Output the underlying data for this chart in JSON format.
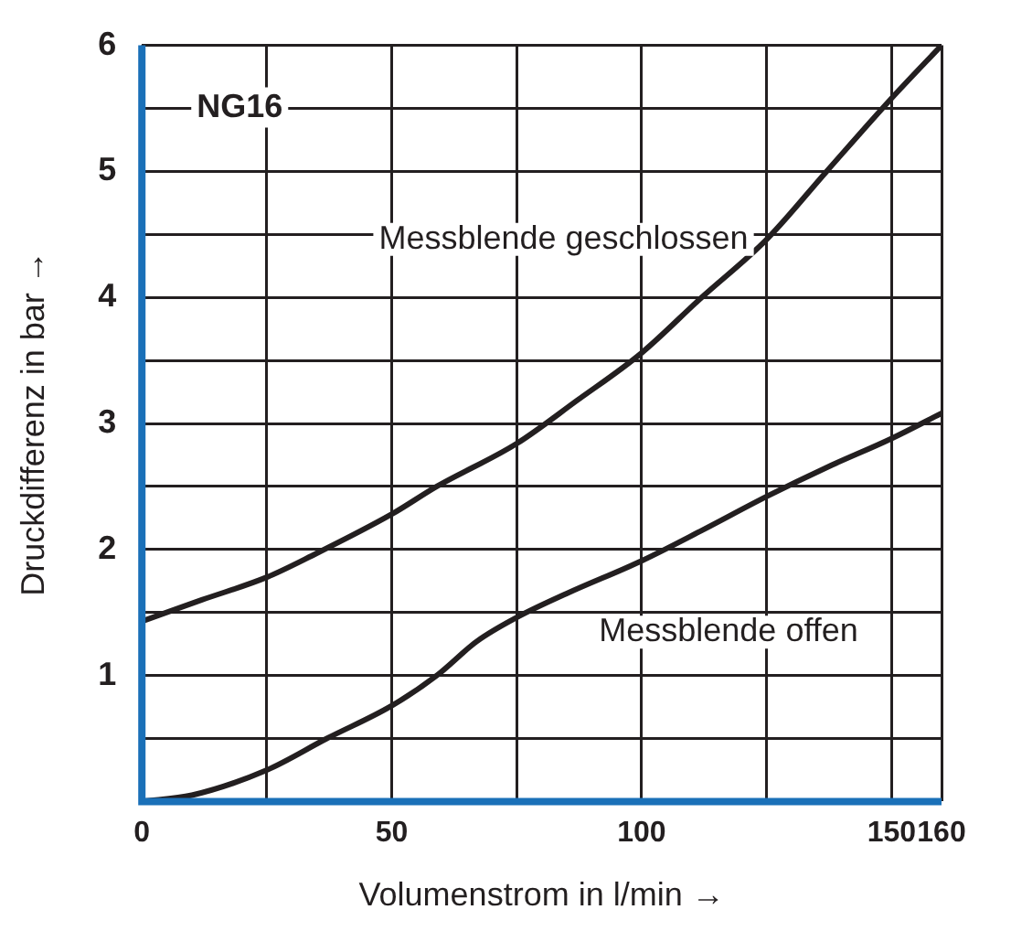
{
  "chart_data": {
    "type": "line",
    "title": "NG16",
    "xlabel": "Volumenstrom in l/min →",
    "ylabel": "Druckdifferenz in bar →",
    "xlim": [
      0,
      160
    ],
    "ylim": [
      0,
      6
    ],
    "xticks": [
      0,
      {
        "value": 25,
        "label": null
      },
      50,
      {
        "value": 75,
        "label": null
      },
      100,
      {
        "value": 125,
        "label": null
      },
      150,
      160
    ],
    "yticks": [
      {
        "value": 0,
        "label": null
      },
      {
        "value": 0.5,
        "label": null
      },
      1,
      {
        "value": 1.5,
        "label": null
      },
      2,
      {
        "value": 2.5,
        "label": null
      },
      3,
      {
        "value": 3.5,
        "label": null
      },
      4,
      {
        "value": 4.5,
        "label": null
      },
      5,
      {
        "value": 5.5,
        "label": null
      },
      6
    ],
    "grid": true,
    "legend": false,
    "marker": "none",
    "line_style": "solid",
    "series": [
      {
        "name": "Messblende geschlossen",
        "color": "#231f20",
        "x": [
          0,
          12,
          25,
          34,
          50,
          59,
          75,
          87,
          100,
          112,
          125,
          137,
          150,
          160
        ],
        "values": [
          1.43,
          1.6,
          1.78,
          1.95,
          2.28,
          2.5,
          2.84,
          3.18,
          3.56,
          4.0,
          4.46,
          5.0,
          5.58,
          6.0
        ]
      },
      {
        "name": "Messblende offen",
        "color": "#231f20",
        "x": [
          0,
          10,
          25,
          37,
          50,
          59,
          67,
          75,
          85,
          100,
          112,
          125,
          137,
          150,
          160
        ],
        "values": [
          0,
          0.05,
          0.25,
          0.5,
          0.76,
          1.0,
          1.27,
          1.46,
          1.65,
          1.91,
          2.15,
          2.42,
          2.65,
          2.88,
          3.08
        ]
      }
    ]
  }
}
